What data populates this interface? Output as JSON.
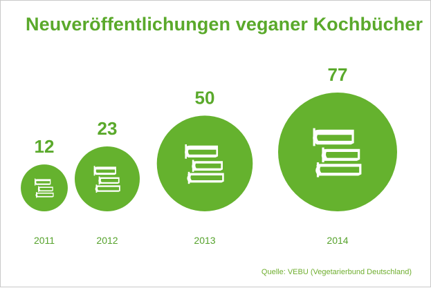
{
  "chart_data": {
    "type": "bubble",
    "title": "Neuveröffentlichungen veganer Kochbücher",
    "categories": [
      "2011",
      "2012",
      "2013",
      "2014"
    ],
    "values": [
      12,
      23,
      50,
      77
    ],
    "source": "Quelle: VEBU (Vegetarierbund Deutschland)",
    "icon": "stacked-books-icon",
    "colors": {
      "bubble": "#65b22e",
      "value_text": "#5aa92b",
      "year_text": "#55a22b",
      "title": "#5aa92b"
    }
  }
}
